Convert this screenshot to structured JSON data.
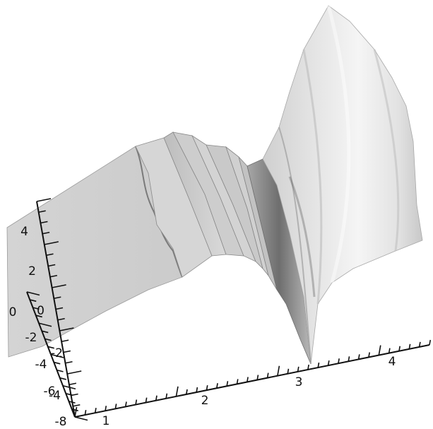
{
  "chart_data": {
    "type": "surface",
    "title": "",
    "xlabel": "",
    "ylabel": "",
    "zlabel": "",
    "grid": false,
    "colors": {
      "surface_light": "#f4f4f4",
      "surface_mid": "#d2d2d2",
      "surface_dark": "#8a8a8a",
      "axes": "#111111"
    },
    "axes": {
      "x": {
        "range": [
          1,
          4.5
        ],
        "major_ticks": [
          "1",
          "2",
          "3",
          "4"
        ],
        "minor_per_major": 10
      },
      "y": {
        "range": [
          -8,
          0
        ],
        "major_ticks": [
          "0",
          "-2",
          "-4",
          "-6",
          "-8"
        ]
      },
      "z": {
        "range": [
          -5,
          5
        ],
        "major_ticks": [
          "4",
          "2",
          "0",
          "-2",
          "-4"
        ]
      }
    },
    "features": [
      {
        "name": "plateau",
        "x_range": [
          1.0,
          2.2
        ],
        "trend": "flat band"
      },
      {
        "name": "stepped ridges",
        "x_range": [
          2.2,
          2.9
        ],
        "trend": "several terraces descending"
      },
      {
        "name": "deep trough",
        "x": 3.0,
        "trend": "sharp drop to axis"
      },
      {
        "name": "tall fan",
        "x_range": [
          3.0,
          4.0
        ],
        "trend": "rises steeply upward"
      }
    ]
  }
}
